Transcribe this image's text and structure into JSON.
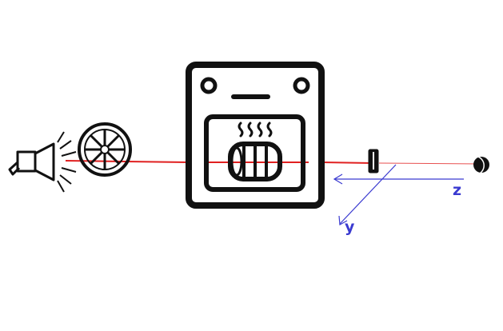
{
  "axes": {
    "z_label": "z",
    "y_label": "y"
  },
  "colors": {
    "beam": "#e02020",
    "axis": "#3a3ad0",
    "ink": "#111111",
    "background": "#ffffff"
  },
  "components": [
    {
      "name": "lamp",
      "icon": "lamp-icon"
    },
    {
      "name": "chopper-wheel",
      "icon": "chopper-wheel-icon"
    },
    {
      "name": "oven",
      "icon": "oven-icon"
    },
    {
      "name": "sample",
      "icon": "heated-sample-icon"
    },
    {
      "name": "slit",
      "icon": "slit-icon"
    },
    {
      "name": "detector",
      "icon": "detector-icon"
    }
  ]
}
